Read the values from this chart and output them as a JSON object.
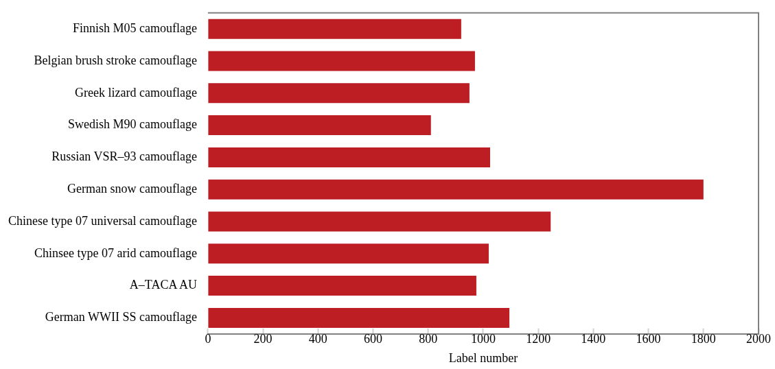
{
  "chart_data": {
    "type": "bar",
    "orientation": "horizontal",
    "xlabel": "Label number",
    "categories": [
      "Finnish M05 camouflage",
      "Belgian brush stroke camouflage",
      "Greek lizard camouflage",
      "Swedish M90 camouflage",
      "Russian VSR–93 camouflage",
      "German snow camouflage",
      "Chinese type 07 universal camouflage",
      "Chinsee type 07 arid camouflage",
      "A–TACA AU",
      "German WWII SS camouflage"
    ],
    "values": [
      920,
      970,
      950,
      810,
      1025,
      1800,
      1245,
      1020,
      975,
      1095
    ],
    "color": "#bc1e23",
    "xlim": [
      0,
      2000
    ],
    "xticks": [
      0,
      200,
      400,
      600,
      800,
      1000,
      1200,
      1400,
      1600,
      1800,
      2000
    ],
    "grid": false,
    "legend": false
  }
}
